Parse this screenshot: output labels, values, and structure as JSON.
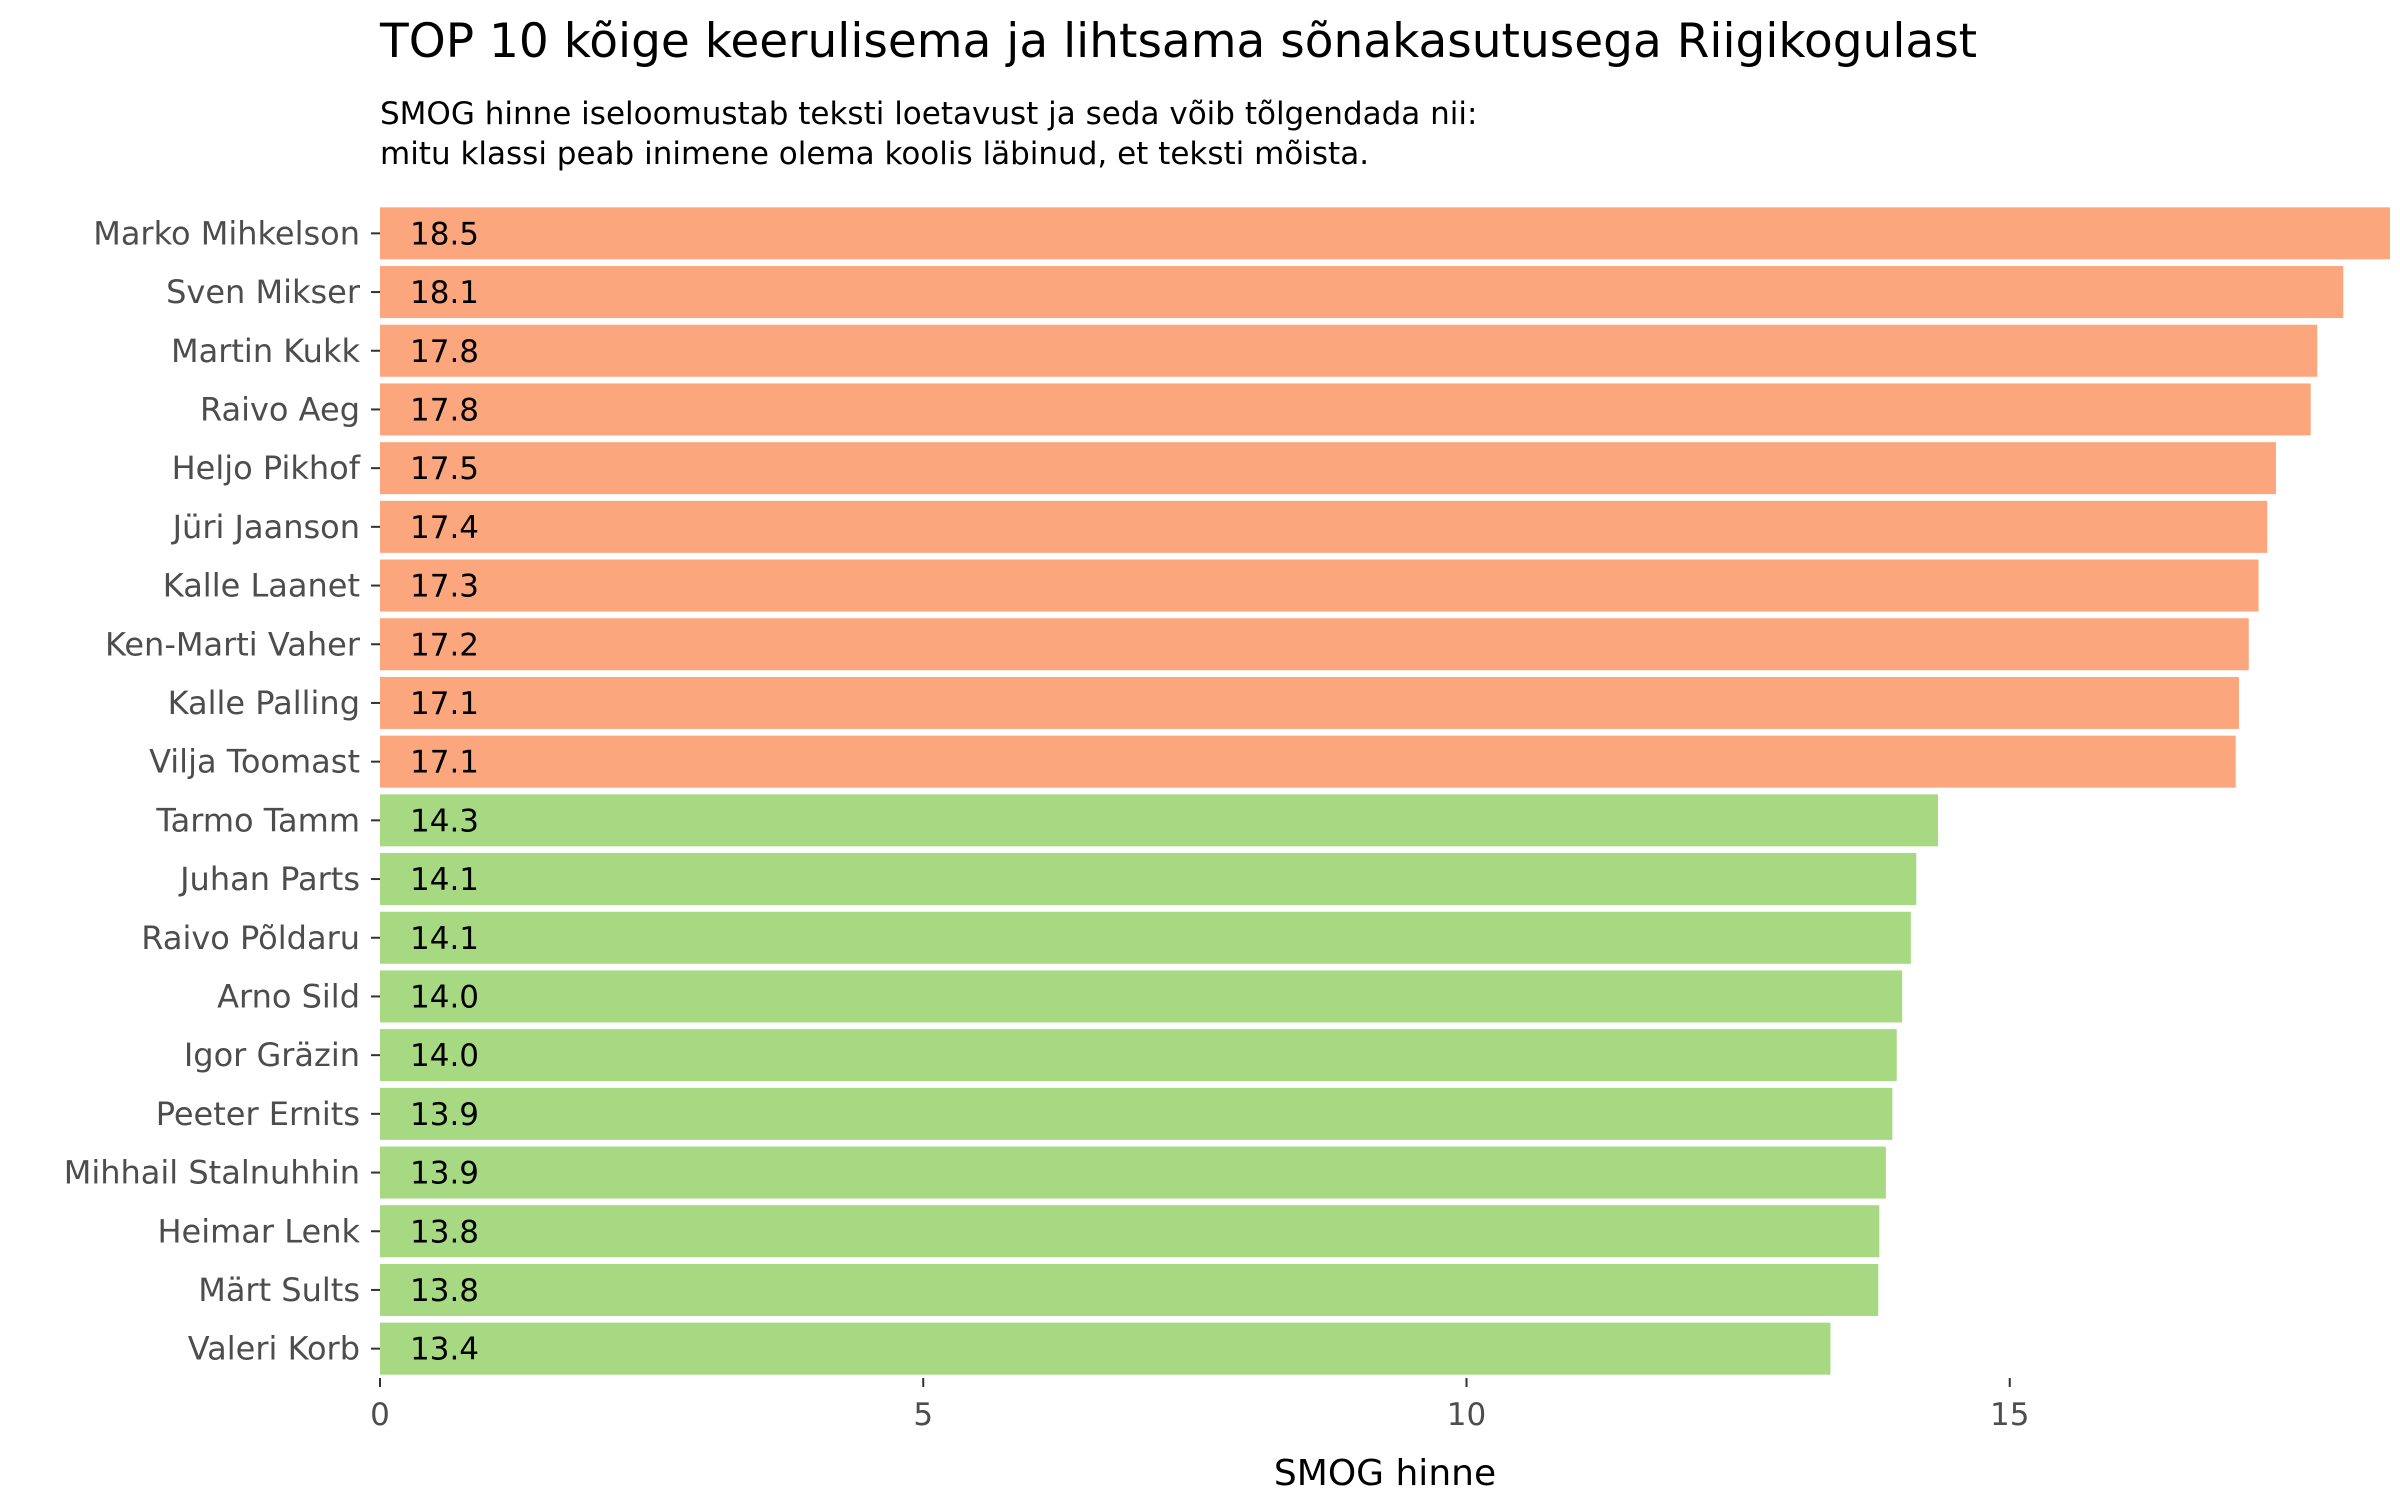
{
  "chart_data": {
    "type": "bar",
    "orientation": "horizontal",
    "title": "TOP 10 kõige keerulisema ja lihtsama sõnakasutusega Riigikogulast",
    "subtitle": [
      "SMOG hinne iseloomustab teksti loetavust ja seda võib tõlgendada nii:",
      "mitu klassi peab inimene olema koolis läbinud, et teksti mõista."
    ],
    "xlabel": "SMOG hinne",
    "ylabel": "",
    "xlim": [
      0,
      18.5
    ],
    "x_ticks": [
      "0",
      "5",
      "10",
      "15"
    ],
    "grid": false,
    "legend": "none",
    "colors": {
      "top": "#fca67d",
      "bottom": "#a6d981"
    },
    "categories": [
      "Marko Mihkelson",
      "Sven Mikser",
      "Martin Kukk",
      "Raivo Aeg",
      "Heljo Pikhof",
      "Jüri Jaanson",
      "Kalle Laanet",
      "Ken-Marti Vaher",
      "Kalle Palling",
      "Vilja Toomast",
      "Tarmo Tamm",
      "Juhan Parts",
      "Raivo Põldaru",
      "Arno Sild",
      "Igor Gräzin",
      "Peeter Ernits",
      "Mihhail Stalnuhhin",
      "Heimar Lenk",
      "Märt Sults",
      "Valeri Korb"
    ],
    "values": [
      18.5,
      18.07,
      17.83,
      17.77,
      17.45,
      17.37,
      17.29,
      17.2,
      17.11,
      17.08,
      14.34,
      14.14,
      14.09,
      14.01,
      13.96,
      13.92,
      13.86,
      13.8,
      13.79,
      13.35
    ],
    "value_labels": [
      "18.5",
      "18.1",
      "17.8",
      "17.8",
      "17.5",
      "17.4",
      "17.3",
      "17.2",
      "17.1",
      "17.1",
      "14.3",
      "14.1",
      "14.1",
      "14.0",
      "14.0",
      "13.9",
      "13.9",
      "13.8",
      "13.8",
      "13.4"
    ],
    "groups": [
      "top",
      "top",
      "top",
      "top",
      "top",
      "top",
      "top",
      "top",
      "top",
      "top",
      "bottom",
      "bottom",
      "bottom",
      "bottom",
      "bottom",
      "bottom",
      "bottom",
      "bottom",
      "bottom",
      "bottom"
    ]
  }
}
